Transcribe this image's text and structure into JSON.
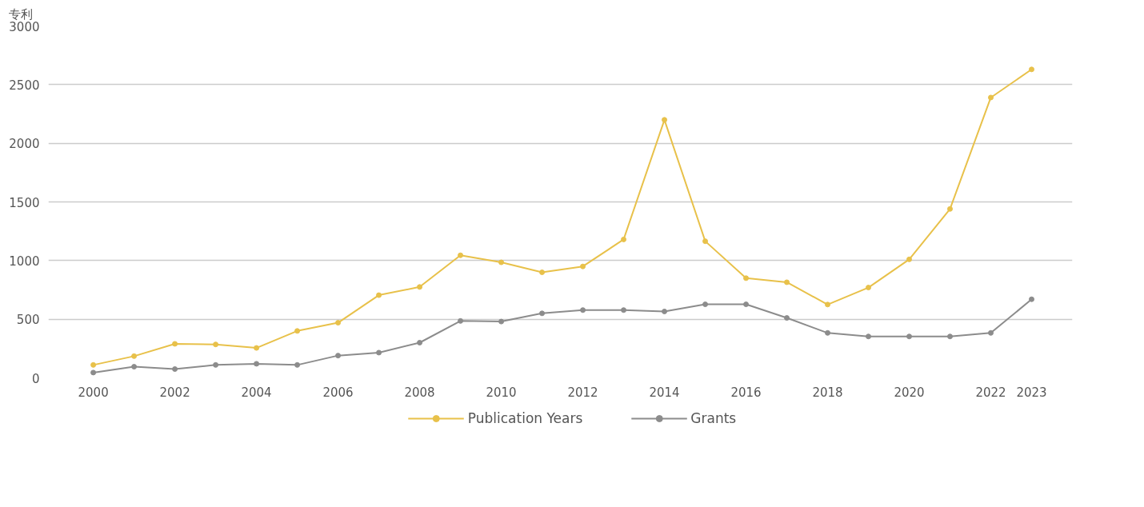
{
  "chart_data": {
    "type": "line",
    "ylabel": "专利",
    "x": [
      2000,
      2001,
      2002,
      2003,
      2004,
      2005,
      2006,
      2007,
      2008,
      2009,
      2010,
      2011,
      2012,
      2013,
      2014,
      2015,
      2016,
      2017,
      2018,
      2019,
      2020,
      2021,
      2022,
      2023
    ],
    "series": [
      {
        "name": "Publication Years",
        "color": "#e8c14a",
        "values": [
          110,
          185,
          290,
          285,
          255,
          400,
          470,
          705,
          775,
          1045,
          985,
          900,
          950,
          1180,
          2200,
          1165,
          850,
          815,
          625,
          770,
          1010,
          1440,
          2390,
          2630
        ]
      },
      {
        "name": "Grants",
        "color": "#8c8c8c",
        "values": [
          45,
          95,
          75,
          110,
          120,
          110,
          190,
          215,
          300,
          485,
          480,
          550,
          578,
          578,
          566,
          627,
          627,
          511,
          383,
          353,
          353,
          353,
          383,
          670
        ]
      }
    ],
    "xlim": [
      1998.9,
      2024
    ],
    "xticks": [
      2000,
      2002,
      2004,
      2006,
      2008,
      2010,
      2012,
      2014,
      2016,
      2018,
      2020,
      2022,
      2023
    ],
    "ylim": [
      0,
      3000
    ],
    "yticks": [
      0,
      500,
      1000,
      1500,
      2000,
      2500,
      3000
    ],
    "grid": "y",
    "legend": "bottom",
    "marker": "circle",
    "line_style": "solid"
  }
}
